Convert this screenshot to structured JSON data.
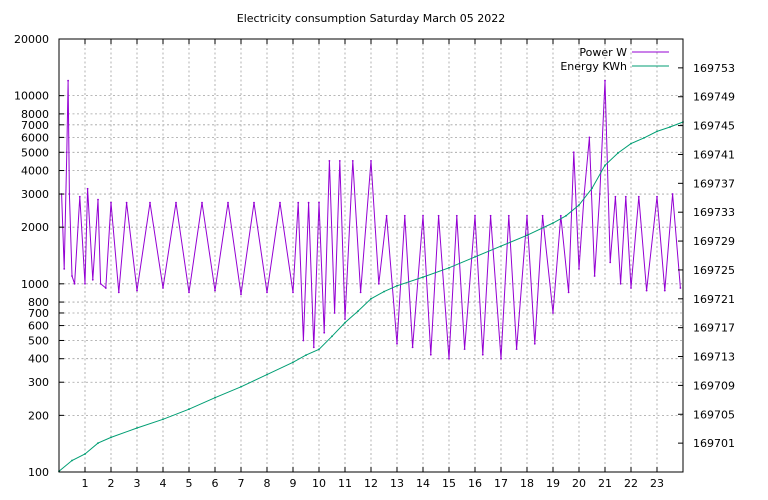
{
  "chart_data": {
    "type": "line",
    "title": "Electricity consumption Saturday March 05 2022",
    "x_ticks": [
      "1",
      "2",
      "3",
      "4",
      "5",
      "6",
      "7",
      "8",
      "9",
      "10",
      "11",
      "12",
      "13",
      "14",
      "15",
      "16",
      "17",
      "18",
      "19",
      "20",
      "21",
      "22",
      "23"
    ],
    "xlim": [
      0,
      24
    ],
    "y_left": {
      "scale": "log",
      "ylim": [
        100,
        20000
      ],
      "ticks": [
        "100",
        "200",
        "300",
        "400",
        "500",
        "600",
        "700",
        "800",
        "1000",
        "2000",
        "3000",
        "4000",
        "5000",
        "6000",
        "7000",
        "8000",
        "10000",
        "20000"
      ]
    },
    "y_right": {
      "scale": "linear",
      "ylim": [
        169697,
        169757
      ],
      "ticks": [
        "169701",
        "169705",
        "169709",
        "169713",
        "169717",
        "169721",
        "169725",
        "169729",
        "169733",
        "169737",
        "169741",
        "169745",
        "169749",
        "169753"
      ]
    },
    "grid": true,
    "legend_position": "top-right",
    "series": [
      {
        "name": "Power W",
        "axis": "left",
        "color": "#9400d3",
        "x": [
          0.1,
          0.2,
          0.3,
          0.35,
          0.4,
          0.5,
          0.6,
          0.8,
          1.0,
          1.1,
          1.3,
          1.5,
          1.6,
          1.8,
          2.0,
          2.3,
          2.6,
          3.0,
          3.5,
          4.0,
          4.5,
          5.0,
          5.5,
          6.0,
          6.5,
          7.0,
          7.5,
          8.0,
          8.5,
          9.0,
          9.2,
          9.4,
          9.6,
          9.8,
          10.0,
          10.2,
          10.4,
          10.6,
          10.8,
          11.0,
          11.3,
          11.6,
          12.0,
          12.3,
          12.6,
          13.0,
          13.3,
          13.6,
          14.0,
          14.3,
          14.6,
          15.0,
          15.3,
          15.6,
          16.0,
          16.3,
          16.6,
          17.0,
          17.3,
          17.6,
          18.0,
          18.3,
          18.6,
          19.0,
          19.3,
          19.6,
          19.8,
          20.0,
          20.2,
          20.4,
          20.6,
          20.8,
          21.0,
          21.2,
          21.4,
          21.6,
          21.8,
          22.0,
          22.3,
          22.6,
          23.0,
          23.3,
          23.6,
          23.9
        ],
        "values": [
          3000,
          1200,
          5000,
          12000,
          3000,
          1100,
          1000,
          2900,
          1000,
          3200,
          1050,
          2800,
          1000,
          950,
          2700,
          900,
          2700,
          920,
          2700,
          950,
          2700,
          900,
          2700,
          920,
          2700,
          880,
          2700,
          900,
          2700,
          900,
          2700,
          500,
          2700,
          460,
          2700,
          550,
          4500,
          700,
          4500,
          650,
          4500,
          900,
          4500,
          1000,
          2300,
          480,
          2300,
          460,
          2300,
          420,
          2300,
          400,
          2300,
          450,
          2300,
          420,
          2300,
          400,
          2300,
          450,
          2300,
          480,
          2300,
          700,
          2300,
          900,
          5000,
          1200,
          3000,
          6000,
          1100,
          3000,
          12000,
          1300,
          2900,
          1000,
          2900,
          950,
          2900,
          920,
          2900,
          920,
          3000,
          950
        ]
      },
      {
        "name": "Energy KWh",
        "axis": "right",
        "color": "#009e73",
        "x": [
          0,
          0.5,
          1,
          1.5,
          2,
          3,
          4,
          5,
          6,
          7,
          8,
          9,
          9.5,
          10,
          10.5,
          11,
          11.5,
          12,
          12.5,
          13,
          14,
          15,
          16,
          17,
          18,
          19,
          19.5,
          20,
          20.5,
          21,
          21.5,
          22,
          22.5,
          23,
          23.5,
          24
        ],
        "values": [
          169697.1,
          169698.6,
          169699.5,
          169701.0,
          169701.8,
          169703.1,
          169704.3,
          169705.7,
          169707.3,
          169708.8,
          169710.5,
          169712.2,
          169713.2,
          169714.0,
          169715.8,
          169717.7,
          169719.3,
          169721.0,
          169722.0,
          169722.8,
          169724.0,
          169725.3,
          169726.8,
          169728.3,
          169729.8,
          169731.5,
          169732.5,
          169734.0,
          169736.3,
          169739.5,
          169741.2,
          169742.5,
          169743.3,
          169744.2,
          169744.8,
          169745.5
        ]
      }
    ]
  }
}
